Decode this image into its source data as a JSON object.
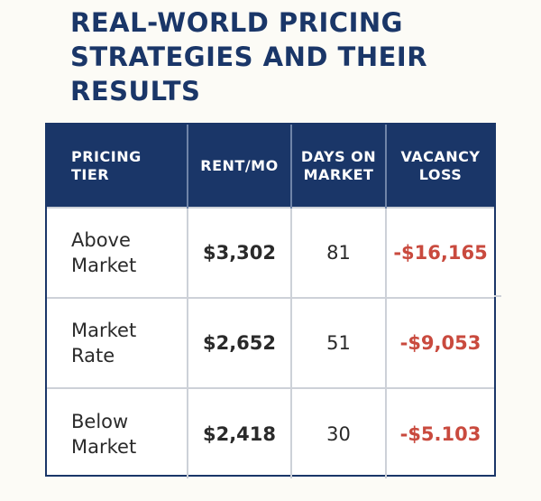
{
  "title": "REAL-WORLD PRICING STRATEGIES AND THEIR RESULTS",
  "table": {
    "headers": [
      "PRICING TIER",
      "RENT/MO",
      "DAYS ON MARKET",
      "VACANCY LOSS"
    ],
    "rows": [
      {
        "tier": "Above Market",
        "rent": "$3,302",
        "days": "81",
        "loss": "-$16,165"
      },
      {
        "tier": "Market Rate",
        "rent": "$2,652",
        "days": "51",
        "loss": "-$9,053"
      },
      {
        "tier": "Below Market",
        "rent": "$2,418",
        "days": "30",
        "loss": "-$5.103"
      }
    ]
  },
  "colors": {
    "header_bg": "#1a3668",
    "title": "#1a3668",
    "loss": "#c94a3e",
    "background": "#fcfbf6"
  }
}
